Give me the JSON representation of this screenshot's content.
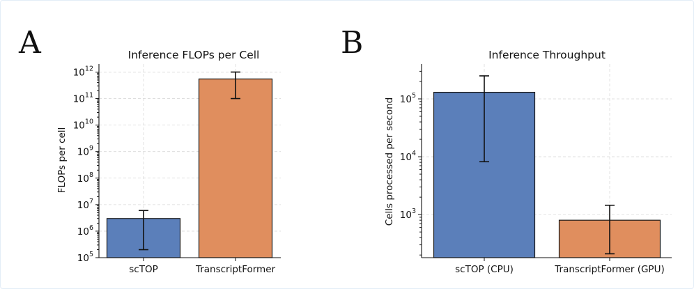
{
  "panels": [
    {
      "letter": "A"
    },
    {
      "letter": "B"
    }
  ],
  "colors": {
    "blue": "#5b7fba",
    "orange": "#e08e5e"
  },
  "chart_data": [
    {
      "type": "bar",
      "yscale": "log",
      "title": "Inference FLOPs per Cell",
      "xlabel": "",
      "ylabel": "FLOPs per cell",
      "ylim": [
        100000,
        2000000000000
      ],
      "yticks": [
        {
          "value": 100000,
          "base": "10",
          "exp": "5"
        },
        {
          "value": 1000000,
          "base": "10",
          "exp": "6"
        },
        {
          "value": 10000000,
          "base": "10",
          "exp": "7"
        },
        {
          "value": 100000000,
          "base": "10",
          "exp": "8"
        },
        {
          "value": 1000000000,
          "base": "10",
          "exp": "9"
        },
        {
          "value": 10000000000,
          "base": "10",
          "exp": "10"
        },
        {
          "value": 100000000000,
          "base": "10",
          "exp": "11"
        },
        {
          "value": 1000000000000,
          "base": "10",
          "exp": "12"
        }
      ],
      "categories": [
        "scTOP",
        "TranscriptFormer"
      ],
      "values": [
        3000000,
        550000000000
      ],
      "error_low": [
        200000,
        100000000000
      ],
      "error_high": [
        6000000,
        1000000000000
      ],
      "bar_colors": [
        "#5b7fba",
        "#e08e5e"
      ],
      "grid": true
    },
    {
      "type": "bar",
      "yscale": "log",
      "title": "Inference Throughput",
      "xlabel": "",
      "ylabel": "Cells processed per second",
      "ylim": [
        180,
        400000
      ],
      "yticks": [
        {
          "value": 1000,
          "base": "10",
          "exp": "3"
        },
        {
          "value": 10000,
          "base": "10",
          "exp": "4"
        },
        {
          "value": 100000,
          "base": "10",
          "exp": "5"
        }
      ],
      "categories": [
        "scTOP (CPU)",
        "TranscriptFormer (GPU)"
      ],
      "values": [
        130000,
        800
      ],
      "error_low": [
        8200,
        210
      ],
      "error_high": [
        250000,
        1450
      ],
      "bar_colors": [
        "#5b7fba",
        "#e08e5e"
      ],
      "grid": true
    }
  ]
}
